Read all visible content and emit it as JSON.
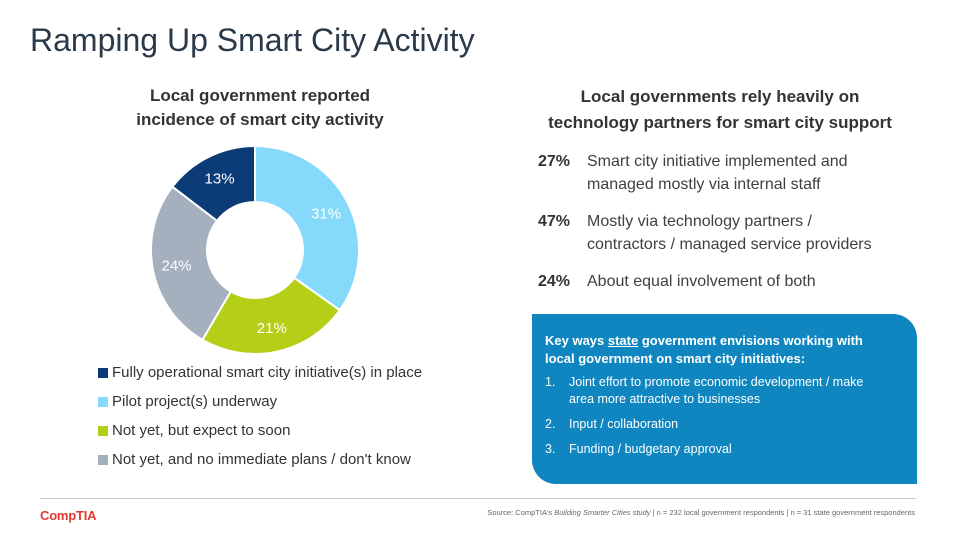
{
  "title": "Ramping Up Smart City Activity",
  "left_panel": {
    "heading_line1": "Local government reported",
    "heading_line2": "incidence of smart city activity"
  },
  "chart_data": {
    "type": "pie",
    "title": "Local government reported incidence of smart city activity",
    "series": [
      {
        "name": "Fully operational smart city initiative(s) in place",
        "value": 13,
        "label": "13%",
        "color": "#0c3c78",
        "label_color": "#ffffff"
      },
      {
        "name": "Pilot project(s) underway",
        "value": 31,
        "label": "31%",
        "color": "#85d9fb",
        "label_color": "#ffffff"
      },
      {
        "name": "Not yet, but expect to soon",
        "value": 21,
        "label": "21%",
        "color": "#b5cf19",
        "label_color": "#ffffff"
      },
      {
        "name": "Not yet, and no immediate plans / don't know",
        "value": 24,
        "label": "24%",
        "color": "#a4b0be",
        "label_color": "#ffffff"
      }
    ]
  },
  "right_panel": {
    "heading_line1": "Local governments rely heavily on",
    "heading_line2": "technology partners for smart city support",
    "stats": [
      {
        "pct": "27%",
        "line1": "Smart city initiative implemented and",
        "line2": "managed mostly via internal staff"
      },
      {
        "pct": "47%",
        "line1": "Mostly via technology partners /",
        "line2": "contractors / managed service providers"
      },
      {
        "pct": "24%",
        "line1": "About equal involvement of both",
        "line2": ""
      }
    ]
  },
  "callout": {
    "head_pre": "Key ways ",
    "head_ul": "state",
    "head_post": " government envisions working with",
    "head_line2": "local government on smart city initiatives:",
    "items": [
      {
        "num": "1.",
        "line1": "Joint effort to promote economic development / make",
        "line2": "area more attractive to businesses"
      },
      {
        "num": "2.",
        "line1": "Input / collaboration",
        "line2": ""
      },
      {
        "num": "3.",
        "line1": "Funding / budgetary approval",
        "line2": ""
      }
    ]
  },
  "footer": {
    "logo": "CompTIA",
    "source_pre": "Source: CompTIA's ",
    "source_italic": "Building Smarter Cities study",
    "source_post": " | n = 232 local government respondents | n = 31 state government respondents"
  }
}
